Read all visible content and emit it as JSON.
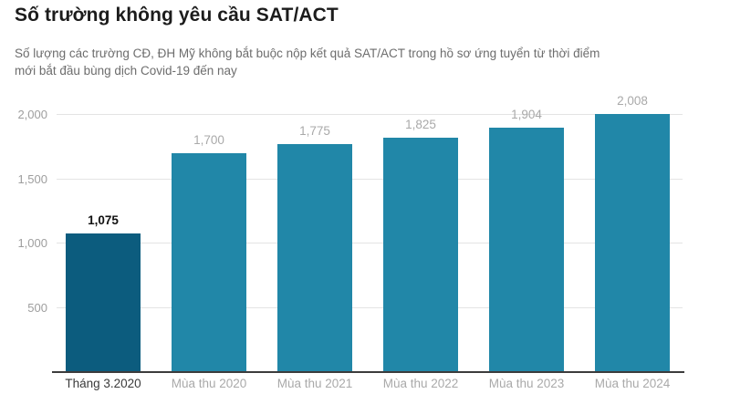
{
  "title": "Số trường không yêu cầu SAT/ACT",
  "subtitle": "Số lượng các trường CĐ, ĐH Mỹ không bắt buộc nộp kết quả SAT/ACT trong hồ sơ ứng tuyển từ thời điểm mới bắt đầu bùng dịch Covid-19 đến nay",
  "chart_data": {
    "type": "bar",
    "categories": [
      "Tháng 3.2020",
      "Mùa thu 2020",
      "Mùa thu 2021",
      "Mùa thu 2022",
      "Mùa thu 2023",
      "Mùa thu 2024"
    ],
    "values": [
      1075,
      1700,
      1775,
      1825,
      1904,
      2008
    ],
    "value_labels": [
      "1,075",
      "1,700",
      "1,775",
      "1,825",
      "1,904",
      "2,008"
    ],
    "highlight_index": 0,
    "yticks": [
      500,
      1000,
      1500,
      2000
    ],
    "ytick_labels": [
      "500",
      "1,000",
      "1,500",
      "2,000"
    ],
    "ylim": [
      0,
      2100
    ],
    "grid": "horizontal",
    "legend": "none",
    "title": "Số trường không yêu cầu SAT/ACT",
    "xlabel": "",
    "ylabel": "",
    "colors": {
      "bar_highlight": "#0c5c7e",
      "bar_default": "#2187a8",
      "value_label_highlight": "#111111",
      "value_label_default": "#a9a9a9",
      "category_label_highlight": "#3a3a3a",
      "category_label_default": "#a9a9a9",
      "tick_label": "#9e9e9e",
      "gridline": "#e4e4e4",
      "axis_line": "#3c3c3c"
    }
  }
}
